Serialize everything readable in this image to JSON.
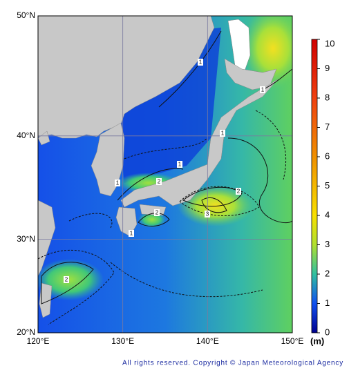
{
  "map": {
    "latlim": [
      20,
      50
    ],
    "lonlim": [
      120,
      150
    ],
    "lat_ticks": [
      {
        "value": 50,
        "label": "50°N"
      },
      {
        "value": 40,
        "label": "40°N"
      },
      {
        "value": 30,
        "label": "30°N"
      },
      {
        "value": 20,
        "label": "20°N"
      }
    ],
    "lon_ticks": [
      {
        "value": 120,
        "label": "120°E"
      },
      {
        "value": 130,
        "label": "130°E"
      },
      {
        "value": 140,
        "label": "140°E"
      },
      {
        "value": 150,
        "label": "150°E"
      }
    ],
    "contour_labels": [
      "1",
      "1",
      "1",
      "2",
      "1",
      "2",
      "3",
      "2",
      "1",
      "2",
      "1"
    ]
  },
  "colorbar": {
    "lim": [
      0,
      10
    ],
    "ticks": [
      0,
      1,
      2,
      3,
      4,
      5,
      6,
      7,
      8,
      9,
      10
    ],
    "unit": "(m)"
  },
  "footer": {
    "copyright": "All rights reserved. Copyright © Japan Meteorological Agency"
  }
}
